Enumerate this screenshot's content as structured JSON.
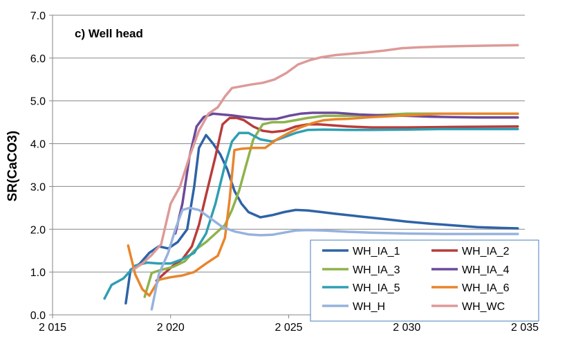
{
  "chart_data": {
    "type": "line",
    "title": "c) Well head",
    "xlabel": "",
    "ylabel": "SR(CaCO3)",
    "xlim": [
      2015,
      2035
    ],
    "ylim": [
      0,
      7
    ],
    "xticks": [
      2015,
      2020,
      2025,
      2030,
      2035
    ],
    "xtick_labels": [
      "2 015",
      "2 020",
      "2 025",
      "2 030",
      "2 035"
    ],
    "yticks": [
      0,
      1,
      2,
      3,
      4,
      5,
      6,
      7
    ],
    "ytick_labels": [
      "0.0",
      "1.0",
      "2.0",
      "3.0",
      "4.0",
      "5.0",
      "6.0",
      "7.0"
    ],
    "grid": "horizontal",
    "legend_position": "bottom-right",
    "series": [
      {
        "name": "WH_IA_1",
        "color": "#2e63a6",
        "x": [
          2018.1,
          2018.3,
          2018.7,
          2019.1,
          2019.5,
          2019.9,
          2020.3,
          2020.7,
          2021.0,
          2021.2,
          2021.5,
          2021.8,
          2022.1,
          2022.4,
          2022.7,
          2023.0,
          2023.3,
          2023.8,
          2024.3,
          2024.8,
          2025.3,
          2025.8,
          2026.4,
          2027.0,
          2028.0,
          2029.0,
          2030.0,
          2031.0,
          2032.0,
          2033.0,
          2034.0,
          2034.7
        ],
        "y": [
          0.27,
          1.05,
          1.2,
          1.45,
          1.6,
          1.55,
          1.7,
          2.0,
          3.0,
          3.9,
          4.2,
          4.0,
          3.75,
          3.4,
          2.9,
          2.6,
          2.4,
          2.28,
          2.33,
          2.4,
          2.45,
          2.44,
          2.4,
          2.36,
          2.3,
          2.24,
          2.18,
          2.13,
          2.09,
          2.05,
          2.03,
          2.02
        ]
      },
      {
        "name": "WH_IA_2",
        "color": "#b83c3a",
        "x": [
          2019.4,
          2019.7,
          2020.1,
          2020.5,
          2020.9,
          2021.2,
          2021.5,
          2021.9,
          2022.2,
          2022.5,
          2022.8,
          2023.1,
          2023.5,
          2023.9,
          2024.3,
          2024.8,
          2025.3,
          2025.8,
          2026.3,
          2026.8,
          2027.5,
          2028.5,
          2030.0,
          2032.0,
          2034.7
        ],
        "y": [
          0.8,
          0.95,
          1.15,
          1.3,
          1.6,
          2.1,
          2.8,
          3.7,
          4.45,
          4.6,
          4.6,
          4.55,
          4.4,
          4.3,
          4.27,
          4.3,
          4.4,
          4.45,
          4.45,
          4.43,
          4.4,
          4.38,
          4.38,
          4.39,
          4.4
        ]
      },
      {
        "name": "WH_IA_3",
        "color": "#8db34c",
        "x": [
          2018.9,
          2019.2,
          2019.6,
          2020.1,
          2020.6,
          2021.0,
          2021.5,
          2021.9,
          2022.3,
          2022.6,
          2022.9,
          2023.2,
          2023.5,
          2023.9,
          2024.3,
          2024.8,
          2025.3,
          2025.8,
          2026.5,
          2027.5,
          2028.5,
          2030.0,
          2031.5,
          2033.0,
          2034.7
        ],
        "y": [
          0.42,
          0.98,
          1.05,
          1.12,
          1.25,
          1.5,
          1.7,
          1.9,
          2.1,
          2.45,
          2.9,
          3.5,
          4.1,
          4.45,
          4.5,
          4.5,
          4.55,
          4.6,
          4.65,
          4.65,
          4.66,
          4.7,
          4.7,
          4.7,
          4.7
        ]
      },
      {
        "name": "WH_IA_4",
        "color": "#6c4a9a",
        "x": [
          2020.2,
          2020.5,
          2020.8,
          2021.1,
          2021.4,
          2021.8,
          2022.2,
          2022.6,
          2023.0,
          2023.5,
          2024.0,
          2024.5,
          2025.0,
          2025.5,
          2026.0,
          2026.5,
          2027.0,
          2027.5,
          2028.0,
          2029.0,
          2030.0,
          2031.0,
          2032.0,
          2033.0,
          2034.7
        ],
        "y": [
          1.9,
          2.6,
          3.7,
          4.4,
          4.62,
          4.7,
          4.68,
          4.66,
          4.63,
          4.6,
          4.57,
          4.58,
          4.65,
          4.7,
          4.72,
          4.72,
          4.72,
          4.7,
          4.68,
          4.66,
          4.65,
          4.63,
          4.62,
          4.61,
          4.61
        ]
      },
      {
        "name": "WH_IA_5",
        "color": "#2f9fb3",
        "x": [
          2017.2,
          2017.5,
          2018.0,
          2018.5,
          2019.0,
          2019.5,
          2020.0,
          2020.5,
          2021.0,
          2021.5,
          2021.9,
          2022.3,
          2022.6,
          2022.9,
          2023.3,
          2023.8,
          2024.3,
          2024.8,
          2025.3,
          2025.8,
          2026.5,
          2027.5,
          2028.5,
          2030.0,
          2031.5,
          2033.0,
          2034.7
        ],
        "y": [
          0.38,
          0.7,
          0.85,
          1.15,
          1.22,
          1.2,
          1.2,
          1.3,
          1.45,
          1.9,
          2.6,
          3.5,
          4.05,
          4.25,
          4.25,
          4.1,
          4.05,
          4.15,
          4.25,
          4.32,
          4.33,
          4.32,
          4.32,
          4.33,
          4.34,
          4.34,
          4.34
        ]
      },
      {
        "name": "WH_IA_6",
        "color": "#e8852b",
        "x": [
          2018.2,
          2018.5,
          2018.8,
          2019.1,
          2019.5,
          2020.0,
          2020.5,
          2021.0,
          2021.5,
          2022.0,
          2022.3,
          2022.5,
          2022.7,
          2023.0,
          2023.5,
          2024.0,
          2024.5,
          2025.0,
          2025.5,
          2026.0,
          2026.5,
          2027.0,
          2027.5,
          2028.5,
          2030.0,
          2031.5,
          2033.0,
          2034.7
        ],
        "y": [
          1.62,
          0.95,
          0.6,
          0.45,
          0.82,
          0.88,
          0.92,
          1.0,
          1.2,
          1.38,
          1.8,
          2.7,
          3.85,
          3.88,
          3.9,
          3.9,
          4.1,
          4.25,
          4.38,
          4.48,
          4.55,
          4.57,
          4.58,
          4.62,
          4.66,
          4.7,
          4.7,
          4.7
        ]
      },
      {
        "name": "WH_H",
        "color": "#96b2dd",
        "x": [
          2019.2,
          2019.5,
          2019.9,
          2020.2,
          2020.5,
          2020.8,
          2021.2,
          2021.7,
          2022.2,
          2022.7,
          2023.3,
          2023.8,
          2024.3,
          2024.8,
          2025.3,
          2025.8,
          2026.5,
          2027.5,
          2028.5,
          2030.0,
          2031.5,
          2033.0,
          2034.7
        ],
        "y": [
          0.13,
          0.95,
          1.45,
          2.0,
          2.45,
          2.5,
          2.45,
          2.25,
          2.05,
          1.95,
          1.88,
          1.86,
          1.87,
          1.92,
          1.97,
          1.98,
          1.97,
          1.94,
          1.92,
          1.9,
          1.89,
          1.89,
          1.89
        ]
      },
      {
        "name": "WH_WC",
        "color": "#dd9a98",
        "x": [
          2018.4,
          2018.8,
          2019.2,
          2019.6,
          2020.0,
          2020.4,
          2020.8,
          2021.2,
          2021.6,
          2022.0,
          2022.3,
          2022.6,
          2022.9,
          2023.4,
          2023.9,
          2024.4,
          2024.9,
          2025.4,
          2025.9,
          2026.4,
          2027.0,
          2027.6,
          2028.3,
          2029.0,
          2029.8,
          2030.5,
          2031.5,
          2032.5,
          2033.5,
          2034.7
        ],
        "y": [
          1.05,
          1.2,
          1.4,
          1.65,
          2.6,
          3.0,
          3.7,
          4.3,
          4.7,
          4.85,
          5.1,
          5.3,
          5.33,
          5.38,
          5.42,
          5.5,
          5.65,
          5.85,
          5.95,
          6.02,
          6.07,
          6.1,
          6.13,
          6.17,
          6.23,
          6.25,
          6.27,
          6.28,
          6.29,
          6.3
        ]
      }
    ]
  }
}
